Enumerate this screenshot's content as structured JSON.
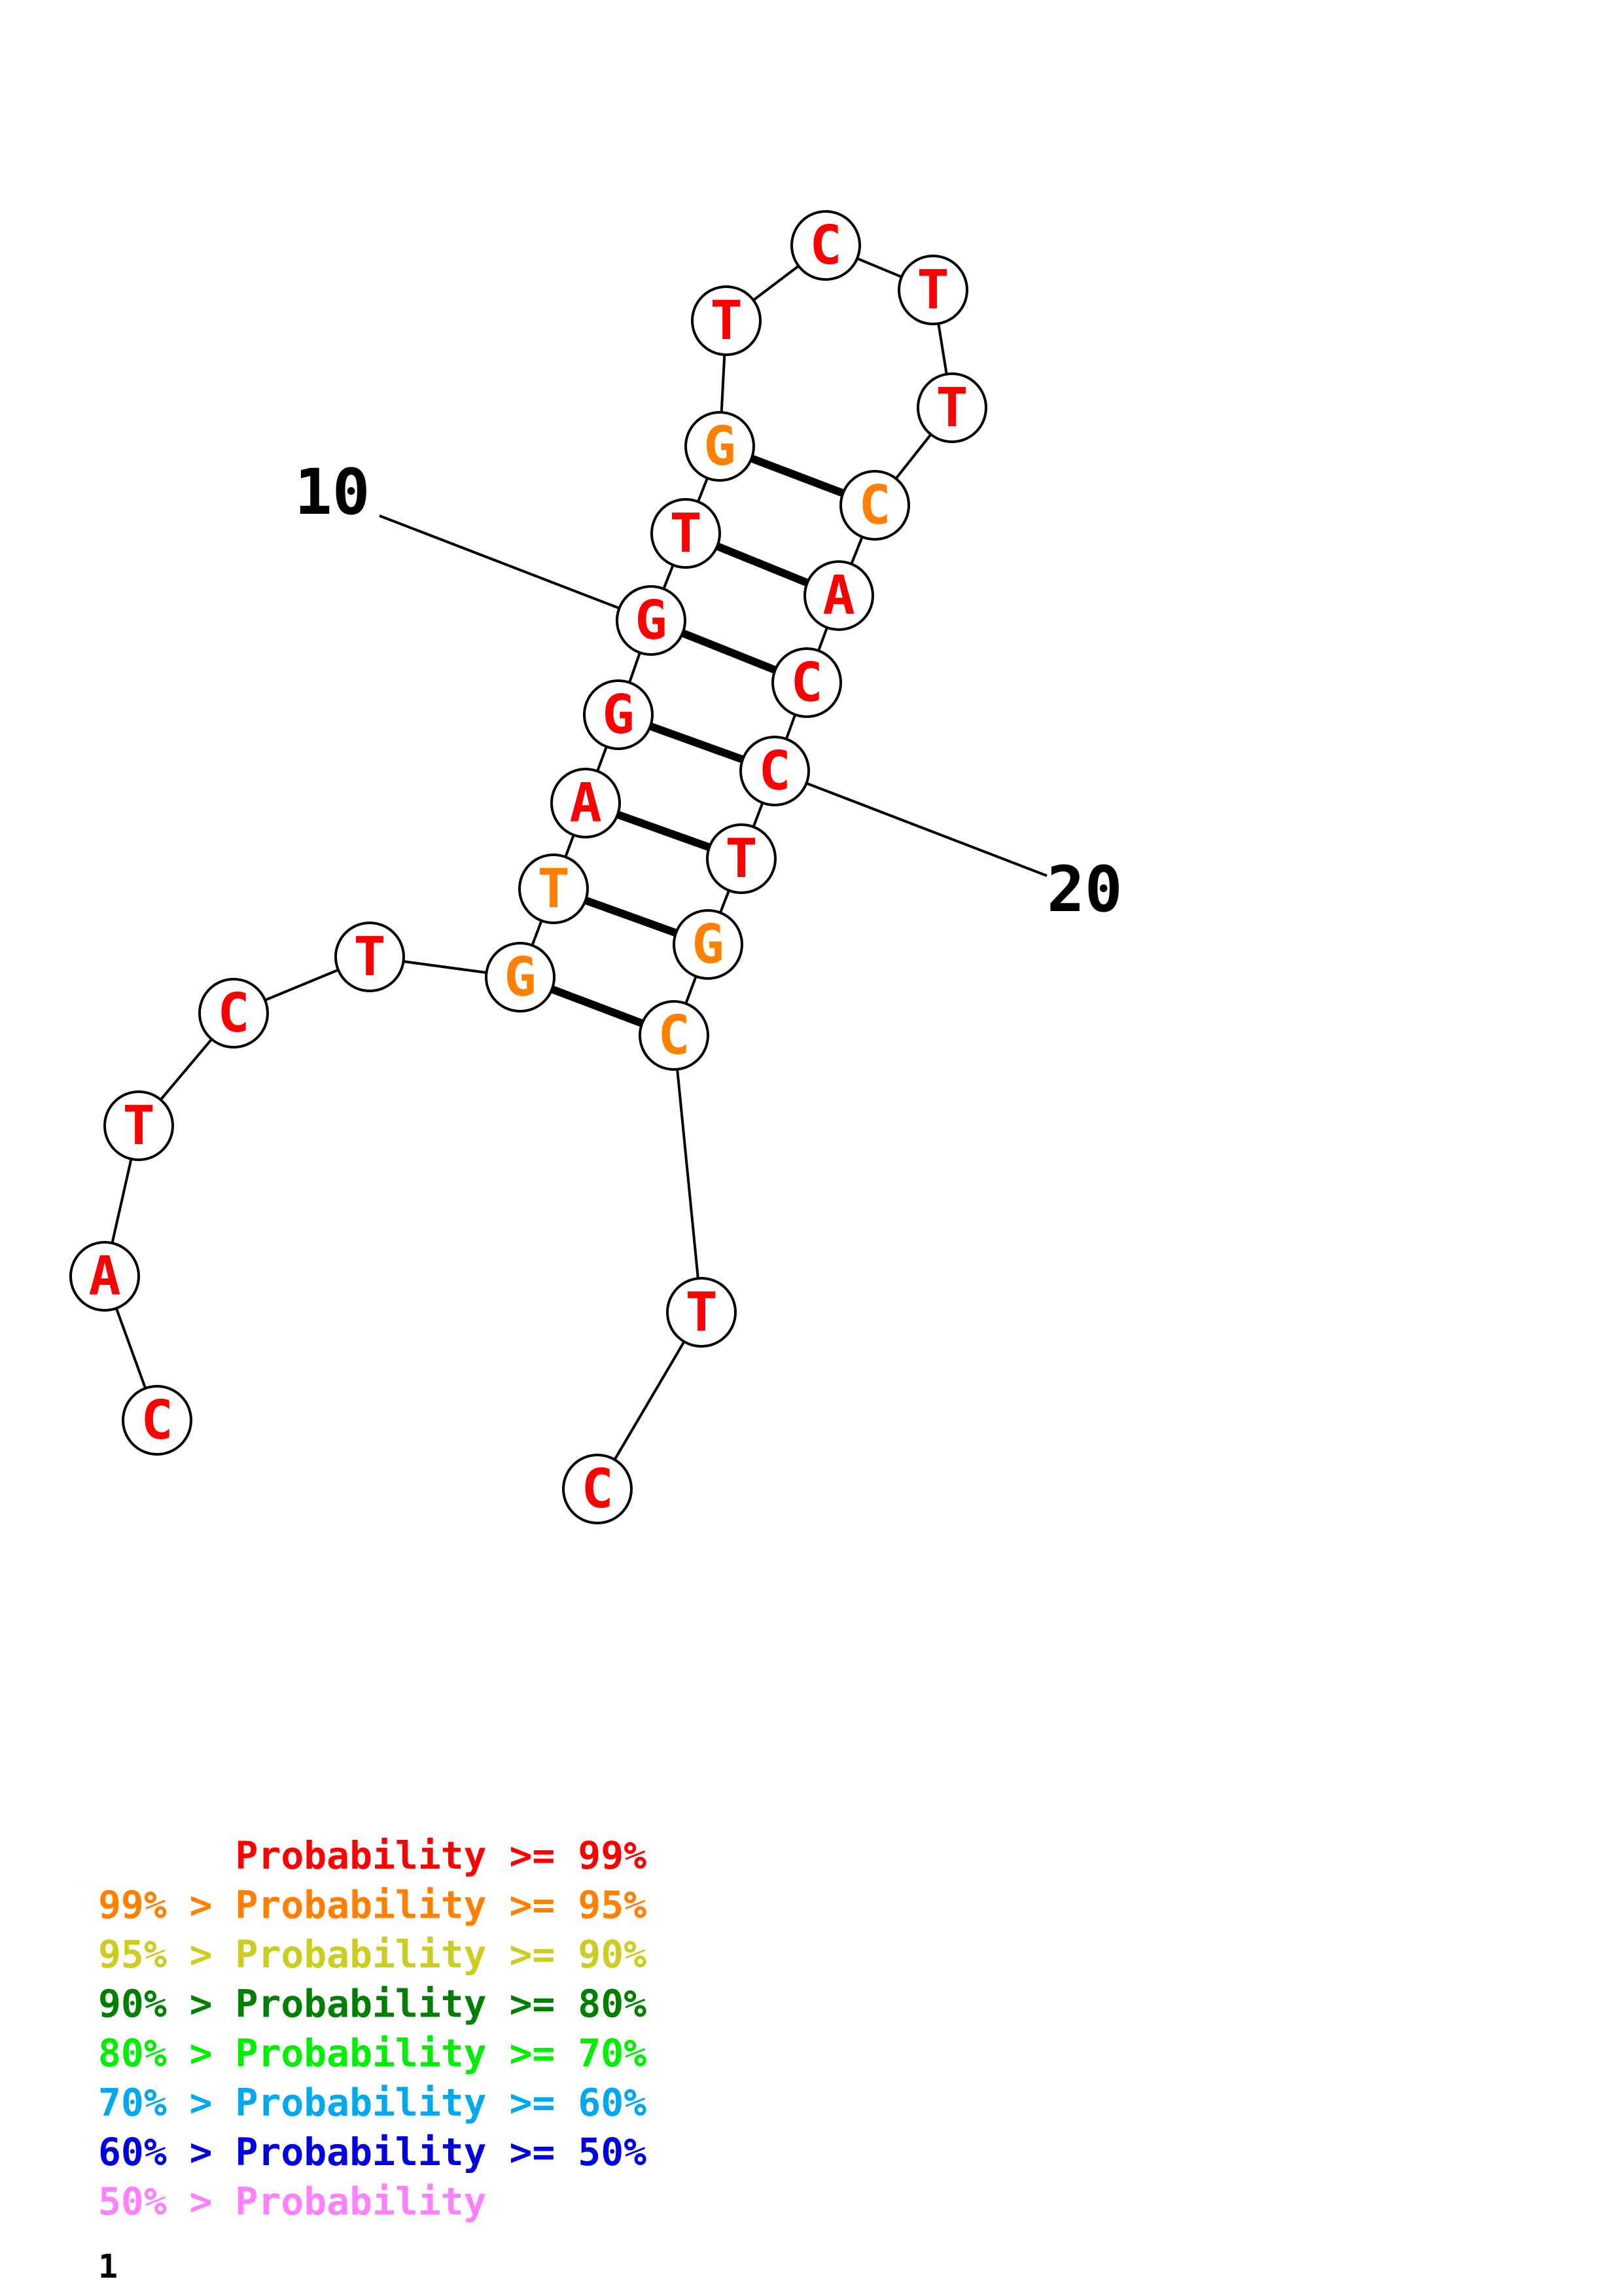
{
  "colors": {
    "p99": "#ff0000",
    "p95": "#ff8000",
    "p90": "#cccc22",
    "p80": "#008000",
    "p70": "#00ee00",
    "p60": "#00a8f0",
    "p50": "#0000e0",
    "p0": "#ff80ff",
    "outline": "#000000"
  },
  "nucleotides": [
    {
      "base": "C",
      "color": "p99"
    },
    {
      "base": "A",
      "color": "p99"
    },
    {
      "base": "T",
      "color": "p99"
    },
    {
      "base": "C",
      "color": "p99"
    },
    {
      "base": "T",
      "color": "p99"
    },
    {
      "base": "G",
      "color": "p95"
    },
    {
      "base": "T",
      "color": "p95"
    },
    {
      "base": "A",
      "color": "p99"
    },
    {
      "base": "G",
      "color": "p99"
    },
    {
      "base": "G",
      "color": "p99"
    },
    {
      "base": "T",
      "color": "p99"
    },
    {
      "base": "G",
      "color": "p95"
    },
    {
      "base": "T",
      "color": "p99"
    },
    {
      "base": "C",
      "color": "p99"
    },
    {
      "base": "T",
      "color": "p99"
    },
    {
      "base": "T",
      "color": "p99"
    },
    {
      "base": "C",
      "color": "p95"
    },
    {
      "base": "A",
      "color": "p99"
    },
    {
      "base": "C",
      "color": "p99"
    },
    {
      "base": "C",
      "color": "p99"
    },
    {
      "base": "T",
      "color": "p99"
    },
    {
      "base": "G",
      "color": "p95"
    },
    {
      "base": "C",
      "color": "p95"
    },
    {
      "base": "T",
      "color": "p99"
    },
    {
      "base": "C",
      "color": "p99"
    }
  ],
  "pairs": [
    [
      6,
      23
    ],
    [
      7,
      22
    ],
    [
      8,
      21
    ],
    [
      9,
      20
    ],
    [
      10,
      19
    ],
    [
      11,
      18
    ],
    [
      12,
      17
    ]
  ],
  "position_labels": [
    {
      "text": "10",
      "nt": 10
    },
    {
      "text": "20",
      "nt": 20
    }
  ],
  "legend": [
    {
      "prefix": "",
      "label": "Probability >= 99%",
      "color": "p99"
    },
    {
      "prefix": "99% > ",
      "label": "Probability >= 95%",
      "color": "p95"
    },
    {
      "prefix": "95% > ",
      "label": "Probability >= 90%",
      "color": "p90"
    },
    {
      "prefix": "90% > ",
      "label": "Probability >= 80%",
      "color": "p80"
    },
    {
      "prefix": "80% > ",
      "label": "Probability >= 70%",
      "color": "p70"
    },
    {
      "prefix": "70% > ",
      "label": "Probability >= 60%",
      "color": "p60"
    },
    {
      "prefix": "60% > ",
      "label": "Probability >= 50%",
      "color": "p50"
    },
    {
      "prefix": "50% > ",
      "label": "Probability",
      "color": "p0"
    }
  ],
  "footer_number": "1"
}
